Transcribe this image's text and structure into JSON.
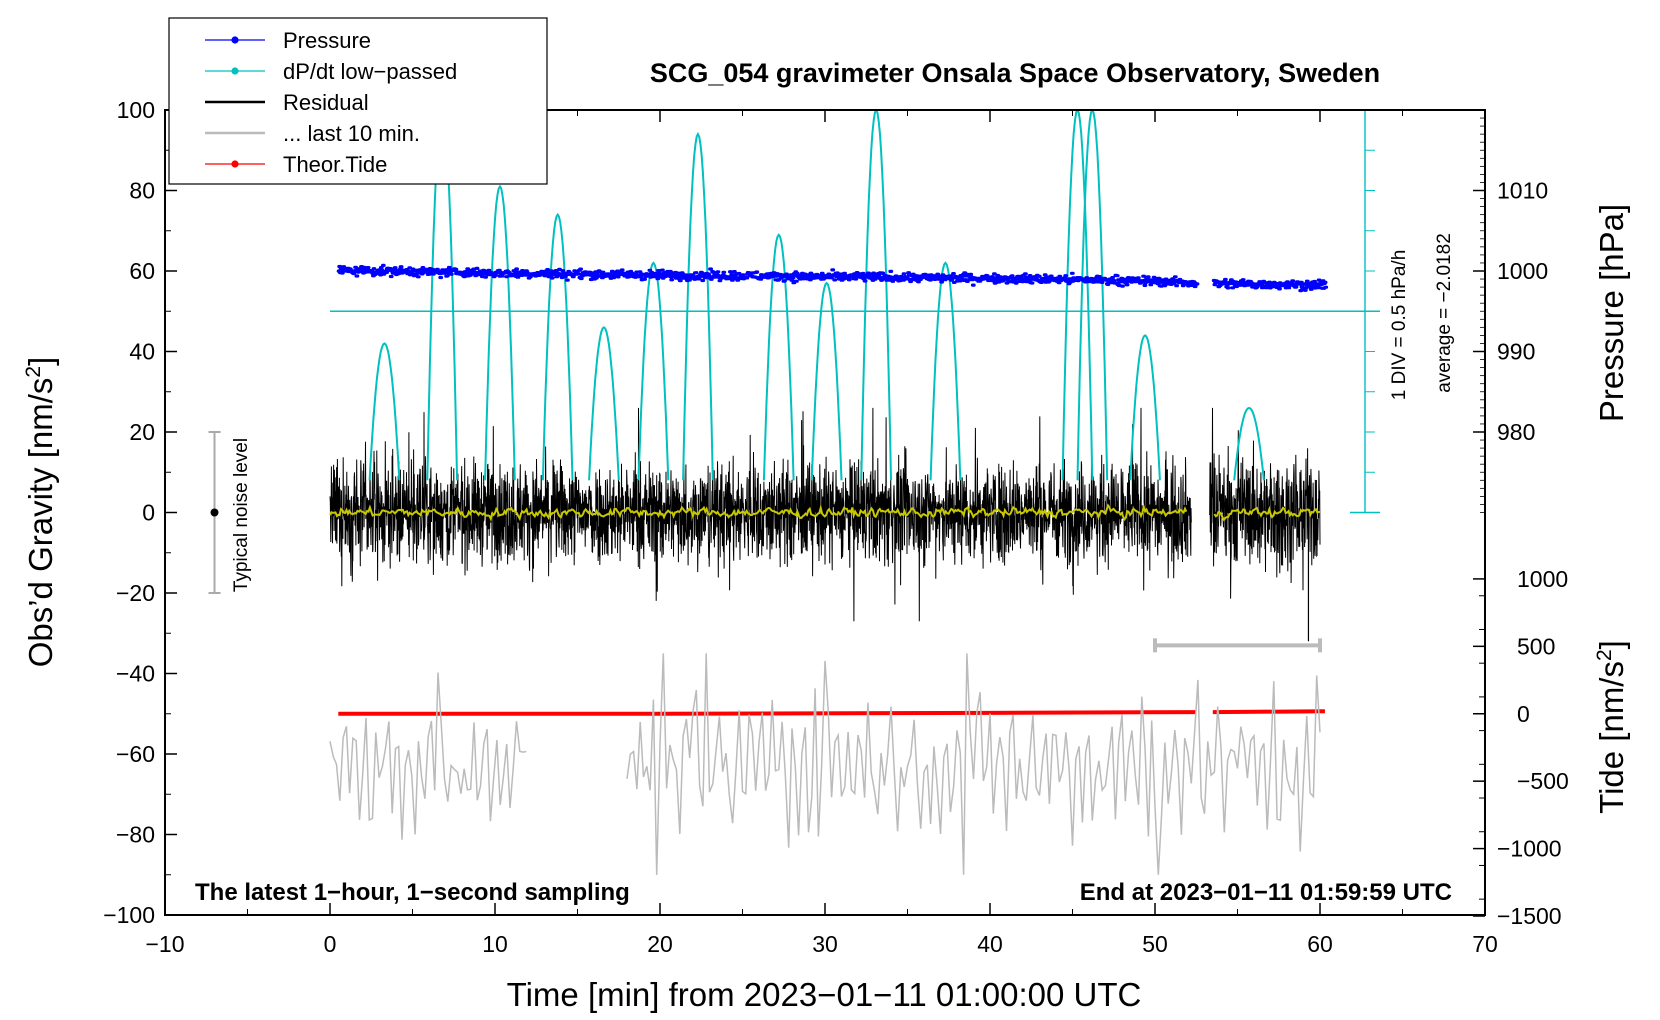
{
  "chart_data": {
    "type": "line",
    "title": "SCG_054 gravimeter Onsala Space Observatory, Sweden",
    "xlabel": "Time [min] from 2023−01−11 01:00:00 UTC",
    "ylabel_left": "Obs’d Gravity [nm/s",
    "ylabel_left_sup": "2",
    "ylabel_left_end": "]",
    "ylabel_pressure": "Pressure [hPa]",
    "ylabel_tide": "Tide [nm/s",
    "ylabel_tide_sup": "2",
    "ylabel_tide_end": "]",
    "xlim": [
      -10,
      70
    ],
    "ylim": [
      -100,
      100
    ],
    "x_ticks": [
      "−10",
      "0",
      "10",
      "20",
      "30",
      "40",
      "50",
      "60",
      "70"
    ],
    "y_ticks": [
      "100",
      "80",
      "60",
      "40",
      "20",
      "0",
      "−20",
      "−40",
      "−60",
      "−80",
      "−100"
    ],
    "pressure_axis": {
      "ticks": [
        "1010",
        "1000",
        "990",
        "980"
      ],
      "tick_values": [
        1010,
        1000,
        990,
        980
      ],
      "maps_to_gravity": [
        80,
        60,
        40,
        20
      ]
    },
    "tide_axis": {
      "ticks": [
        "1000",
        "500",
        "0",
        "−500",
        "−1000",
        "−1500"
      ],
      "tick_values": [
        1000,
        500,
        0,
        -500,
        -1000,
        -1500
      ],
      "maps_to_gravity": [
        -16.5,
        -33.25,
        -50,
        -66.75,
        -83.5,
        -100.25
      ]
    },
    "dpdt_scale": {
      "label": "1 DIV = 0.5 hPa/h",
      "average_label": "average = −2.0182",
      "baseline_gravity": 50
    },
    "noise_bar": {
      "label": "Typical noise level",
      "center": 0,
      "half_range": 20,
      "x": -7
    },
    "ten_min_bar": {
      "x_start": 50,
      "x_end": 60,
      "y": -33
    },
    "legend": [
      {
        "label": "Pressure",
        "color": "#0000ff",
        "marker": true
      },
      {
        "label": "dP/dt low−passed",
        "color": "#00c0c0",
        "marker": true
      },
      {
        "label": "Residual",
        "color": "#000000",
        "marker": false
      },
      {
        "label": "... last 10 min.",
        "color": "#bbbbbb",
        "marker": false
      },
      {
        "label": "Theor.Tide",
        "color": "#ff0000",
        "marker": true
      }
    ],
    "series": [
      {
        "name": "Pressure",
        "color": "#0000ff",
        "x": [
          0.5,
          10,
          20,
          30,
          40,
          50,
          52.5,
          53.5,
          60.3
        ],
        "y": [
          60.2,
          59.5,
          59,
          58.6,
          58.2,
          57.5,
          57,
          56.9,
          56.5
        ]
      },
      {
        "name": "dP/dt low-passed peaks",
        "color": "#00c0c0",
        "x": [
          3.3,
          6.8,
          10.3,
          13.8,
          16.6,
          19.6,
          22.3,
          27.2,
          30.1,
          33.1,
          37.3,
          45.3,
          46.2,
          49.4,
          55.7
        ],
        "y": [
          42,
          100,
          81,
          74,
          46,
          62,
          94,
          69,
          57,
          100,
          62,
          100,
          100,
          44,
          26
        ]
      },
      {
        "name": "Residual",
        "color": "#000000",
        "x_range": [
          0,
          60
        ],
        "gap": [
          52.2,
          53.3
        ],
        "envelope": [
          -27,
          26
        ],
        "notable_min": {
          "x": 59.3,
          "y": -32
        }
      },
      {
        "name": "Residual smoothed",
        "color": "#c8c800",
        "x_range": [
          0,
          60
        ],
        "typical": 0
      },
      {
        "name": "... last 10 min.",
        "color": "#bbbbbb",
        "segments": [
          [
            0,
            11.9
          ],
          [
            18,
            60
          ]
        ],
        "center": -62,
        "range": [
          -90,
          -35
        ]
      },
      {
        "name": "Theor.Tide",
        "color": "#ff0000",
        "x": [
          0.5,
          20,
          40,
          52.5,
          53.5,
          60.3
        ],
        "y": [
          -50,
          -50,
          -49.8,
          -49.6,
          -49.6,
          -49.4
        ]
      }
    ],
    "annotation_left": "The latest 1−hour, 1−second sampling",
    "annotation_right": "End at 2023−01−11 01:59:59 UTC"
  }
}
